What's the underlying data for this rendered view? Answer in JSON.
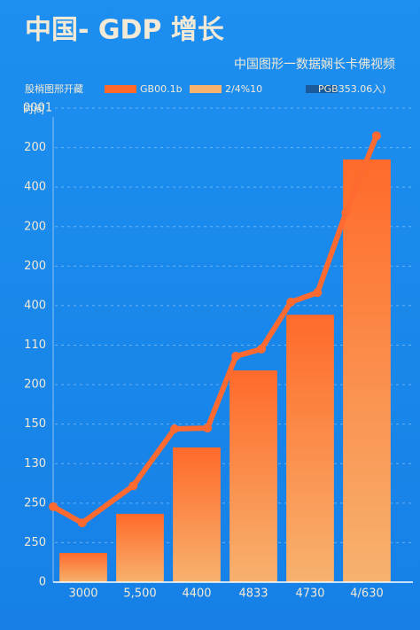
{
  "chart_data": {
    "type": "bar",
    "title": "中国- GDP 增长",
    "subtitle": "中国图形一数据娴长卡佛视频",
    "y_axis_label": "时间",
    "legend": {
      "title": "股梢图邢开藏",
      "items": [
        {
          "name": "GB00.1b",
          "color": "#ff6a2a"
        },
        {
          "name": "2/4%10",
          "color": "#f7b26e"
        },
        {
          "name": "PGB353.06入)",
          "color": "#1a5a9a"
        }
      ]
    },
    "categories": [
      "3000",
      "5,500",
      "4400",
      "4833",
      "4730",
      "4/630"
    ],
    "series": [
      {
        "name": "GB00.1b",
        "type": "bar",
        "color": "#ff6a2a",
        "color_bottom": "#f7b26e",
        "values": [
          0.74,
          1.73,
          3.41,
          5.36,
          6.77,
          10.7
        ]
      },
      {
        "name": "2/4%10",
        "type": "line",
        "color": "#ff6a30",
        "x": [
          -0.53,
          -0.02,
          0.88,
          1.61,
          2.19,
          2.69,
          3.14,
          3.66,
          4.13,
          4.63,
          5.17
        ],
        "values": [
          1.91,
          1.5,
          2.44,
          3.88,
          3.9,
          5.72,
          5.9,
          7.09,
          7.33,
          9.35,
          11.3
        ]
      }
    ],
    "ylim": [
      0,
      12
    ],
    "yticks": [
      {
        "value": 0,
        "label": "0"
      },
      {
        "value": 1,
        "label": "250"
      },
      {
        "value": 2,
        "label": "250"
      },
      {
        "value": 3,
        "label": "130"
      },
      {
        "value": 4,
        "label": "150"
      },
      {
        "value": 5,
        "label": "200"
      },
      {
        "value": 6,
        "label": "110"
      },
      {
        "value": 7,
        "label": "400"
      },
      {
        "value": 8,
        "label": "200"
      },
      {
        "value": 9,
        "label": "200"
      },
      {
        "value": 10,
        "label": "400"
      },
      {
        "value": 11,
        "label": "200"
      },
      {
        "value": 12,
        "label": "0001"
      }
    ],
    "grid": true
  }
}
